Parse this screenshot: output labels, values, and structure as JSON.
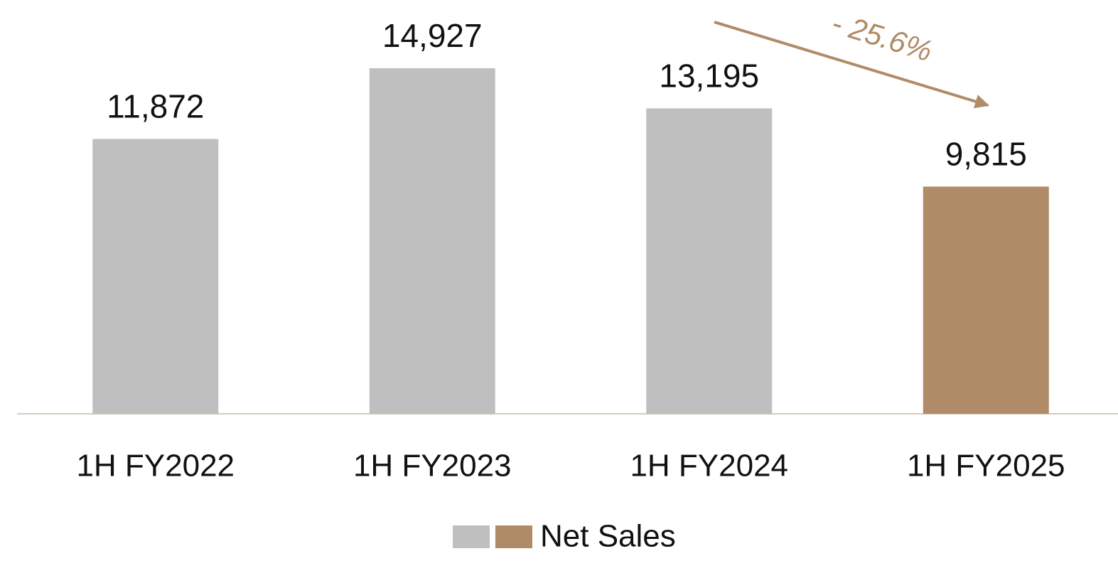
{
  "chart_data": {
    "type": "bar",
    "categories": [
      "1H FY2022",
      "1H FY2023",
      "1H FY2024",
      "1H FY2025"
    ],
    "series": [
      {
        "name": "Net Sales",
        "colors": [
          "#bfbfbf",
          "#bfbfbf",
          "#bfbfbf",
          "#b08b68"
        ],
        "values": [
          11872,
          14927,
          13195,
          9815
        ],
        "value_labels": [
          "11,872",
          "14,927",
          "13,195",
          "9,815"
        ]
      }
    ],
    "annotation": "- 25.6%",
    "annotation_color": "#b08b68"
  }
}
